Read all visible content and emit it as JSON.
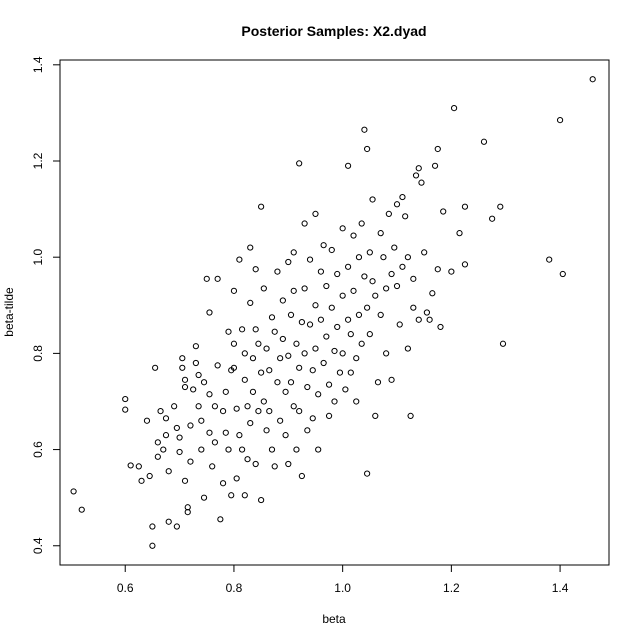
{
  "chart_data": {
    "type": "scatter",
    "title": "Posterior Samples: X2.dyad",
    "xlabel": "beta",
    "ylabel": "beta-tilde",
    "xlim": [
      0.48,
      1.49
    ],
    "ylim": [
      0.36,
      1.41
    ],
    "xticks": [
      0.6,
      0.8,
      1.0,
      1.2,
      1.4
    ],
    "xtick_labels": [
      "0.6",
      "0.8",
      "1.0",
      "1.2",
      "1.4"
    ],
    "yticks": [
      0.4,
      0.6,
      0.8,
      1.0,
      1.2,
      1.4
    ],
    "ytick_labels": [
      "0.4",
      "0.6",
      "0.8",
      "1.0",
      "1.2",
      "1.4"
    ],
    "grid": false,
    "points": [
      [
        0.505,
        0.513
      ],
      [
        0.52,
        0.475
      ],
      [
        0.6,
        0.705
      ],
      [
        0.6,
        0.683
      ],
      [
        0.61,
        0.567
      ],
      [
        0.625,
        0.565
      ],
      [
        0.63,
        0.535
      ],
      [
        0.64,
        0.66
      ],
      [
        0.645,
        0.545
      ],
      [
        0.65,
        0.4
      ],
      [
        0.65,
        0.44
      ],
      [
        0.655,
        0.77
      ],
      [
        0.66,
        0.615
      ],
      [
        0.66,
        0.585
      ],
      [
        0.665,
        0.68
      ],
      [
        0.67,
        0.6
      ],
      [
        0.675,
        0.665
      ],
      [
        0.675,
        0.63
      ],
      [
        0.68,
        0.555
      ],
      [
        0.68,
        0.45
      ],
      [
        0.69,
        0.69
      ],
      [
        0.695,
        0.645
      ],
      [
        0.695,
        0.44
      ],
      [
        0.7,
        0.625
      ],
      [
        0.7,
        0.595
      ],
      [
        0.705,
        0.79
      ],
      [
        0.705,
        0.77
      ],
      [
        0.71,
        0.745
      ],
      [
        0.71,
        0.73
      ],
      [
        0.71,
        0.535
      ],
      [
        0.715,
        0.48
      ],
      [
        0.715,
        0.47
      ],
      [
        0.72,
        0.65
      ],
      [
        0.72,
        0.575
      ],
      [
        0.725,
        0.725
      ],
      [
        0.73,
        0.815
      ],
      [
        0.73,
        0.78
      ],
      [
        0.735,
        0.755
      ],
      [
        0.735,
        0.69
      ],
      [
        0.74,
        0.66
      ],
      [
        0.74,
        0.6
      ],
      [
        0.745,
        0.74
      ],
      [
        0.745,
        0.5
      ],
      [
        0.75,
        0.955
      ],
      [
        0.755,
        0.885
      ],
      [
        0.755,
        0.715
      ],
      [
        0.755,
        0.635
      ],
      [
        0.76,
        0.565
      ],
      [
        0.765,
        0.615
      ],
      [
        0.765,
        0.69
      ],
      [
        0.77,
        0.955
      ],
      [
        0.77,
        0.775
      ],
      [
        0.775,
        0.455
      ],
      [
        0.78,
        0.68
      ],
      [
        0.78,
        0.53
      ],
      [
        0.785,
        0.72
      ],
      [
        0.785,
        0.635
      ],
      [
        0.79,
        0.845
      ],
      [
        0.79,
        0.6
      ],
      [
        0.795,
        0.765
      ],
      [
        0.795,
        0.505
      ],
      [
        0.8,
        0.93
      ],
      [
        0.8,
        0.82
      ],
      [
        0.8,
        0.77
      ],
      [
        0.805,
        0.685
      ],
      [
        0.805,
        0.54
      ],
      [
        0.81,
        0.995
      ],
      [
        0.81,
        0.63
      ],
      [
        0.815,
        0.85
      ],
      [
        0.815,
        0.6
      ],
      [
        0.82,
        0.8
      ],
      [
        0.82,
        0.745
      ],
      [
        0.82,
        0.505
      ],
      [
        0.825,
        0.69
      ],
      [
        0.825,
        0.58
      ],
      [
        0.83,
        1.02
      ],
      [
        0.83,
        0.655
      ],
      [
        0.83,
        0.905
      ],
      [
        0.835,
        0.79
      ],
      [
        0.835,
        0.72
      ],
      [
        0.84,
        0.975
      ],
      [
        0.84,
        0.85
      ],
      [
        0.84,
        0.57
      ],
      [
        0.845,
        0.82
      ],
      [
        0.845,
        0.68
      ],
      [
        0.85,
        1.105
      ],
      [
        0.85,
        0.76
      ],
      [
        0.85,
        0.495
      ],
      [
        0.855,
        0.935
      ],
      [
        0.855,
        0.7
      ],
      [
        0.86,
        0.81
      ],
      [
        0.86,
        0.64
      ],
      [
        0.865,
        0.765
      ],
      [
        0.865,
        0.68
      ],
      [
        0.87,
        0.875
      ],
      [
        0.87,
        0.6
      ],
      [
        0.875,
        0.845
      ],
      [
        0.875,
        0.565
      ],
      [
        0.88,
        0.97
      ],
      [
        0.88,
        0.74
      ],
      [
        0.885,
        0.79
      ],
      [
        0.885,
        0.66
      ],
      [
        0.89,
        0.91
      ],
      [
        0.89,
        0.83
      ],
      [
        0.895,
        0.72
      ],
      [
        0.895,
        0.63
      ],
      [
        0.9,
        0.99
      ],
      [
        0.9,
        0.795
      ],
      [
        0.9,
        0.57
      ],
      [
        0.905,
        0.88
      ],
      [
        0.905,
        0.74
      ],
      [
        0.91,
        1.01
      ],
      [
        0.91,
        0.93
      ],
      [
        0.91,
        0.69
      ],
      [
        0.915,
        0.82
      ],
      [
        0.915,
        0.6
      ],
      [
        0.92,
        1.195
      ],
      [
        0.92,
        0.77
      ],
      [
        0.92,
        0.68
      ],
      [
        0.925,
        0.865
      ],
      [
        0.925,
        0.545
      ],
      [
        0.93,
        1.07
      ],
      [
        0.93,
        0.935
      ],
      [
        0.93,
        0.8
      ],
      [
        0.935,
        0.73
      ],
      [
        0.935,
        0.64
      ],
      [
        0.94,
        0.995
      ],
      [
        0.94,
        0.86
      ],
      [
        0.945,
        0.765
      ],
      [
        0.945,
        0.665
      ],
      [
        0.95,
        1.09
      ],
      [
        0.95,
        0.9
      ],
      [
        0.95,
        0.81
      ],
      [
        0.955,
        0.715
      ],
      [
        0.955,
        0.6
      ],
      [
        0.96,
        0.97
      ],
      [
        0.96,
        0.87
      ],
      [
        0.965,
        1.025
      ],
      [
        0.965,
        0.78
      ],
      [
        0.97,
        0.94
      ],
      [
        0.97,
        0.835
      ],
      [
        0.975,
        0.735
      ],
      [
        0.975,
        0.67
      ],
      [
        0.98,
        1.015
      ],
      [
        0.98,
        0.895
      ],
      [
        0.985,
        0.805
      ],
      [
        0.985,
        0.7
      ],
      [
        0.99,
        0.965
      ],
      [
        0.99,
        0.855
      ],
      [
        0.995,
        0.76
      ],
      [
        1.0,
        1.06
      ],
      [
        1.0,
        0.92
      ],
      [
        1.0,
        0.8
      ],
      [
        1.005,
        0.725
      ],
      [
        1.01,
        1.19
      ],
      [
        1.01,
        0.98
      ],
      [
        1.01,
        0.87
      ],
      [
        1.015,
        0.84
      ],
      [
        1.015,
        0.76
      ],
      [
        1.02,
        1.045
      ],
      [
        1.02,
        0.93
      ],
      [
        1.025,
        0.79
      ],
      [
        1.025,
        0.7
      ],
      [
        1.03,
        1.0
      ],
      [
        1.03,
        0.88
      ],
      [
        1.035,
        1.07
      ],
      [
        1.035,
        0.82
      ],
      [
        1.04,
        1.265
      ],
      [
        1.04,
        0.96
      ],
      [
        1.045,
        1.225
      ],
      [
        1.045,
        0.895
      ],
      [
        1.045,
        0.55
      ],
      [
        1.05,
        1.01
      ],
      [
        1.05,
        0.84
      ],
      [
        1.055,
        1.12
      ],
      [
        1.055,
        0.95
      ],
      [
        1.06,
        0.92
      ],
      [
        1.06,
        0.67
      ],
      [
        1.065,
        0.74
      ],
      [
        1.07,
        1.05
      ],
      [
        1.07,
        0.88
      ],
      [
        1.075,
        1.0
      ],
      [
        1.08,
        0.935
      ],
      [
        1.08,
        0.8
      ],
      [
        1.085,
        1.09
      ],
      [
        1.09,
        0.965
      ],
      [
        1.09,
        0.745
      ],
      [
        1.095,
        1.02
      ],
      [
        1.1,
        1.11
      ],
      [
        1.1,
        0.94
      ],
      [
        1.105,
        0.86
      ],
      [
        1.11,
        1.125
      ],
      [
        1.11,
        0.98
      ],
      [
        1.115,
        1.085
      ],
      [
        1.12,
        1.0
      ],
      [
        1.12,
        0.81
      ],
      [
        1.125,
        0.67
      ],
      [
        1.13,
        0.955
      ],
      [
        1.13,
        0.895
      ],
      [
        1.135,
        1.17
      ],
      [
        1.14,
        1.185
      ],
      [
        1.14,
        0.87
      ],
      [
        1.145,
        1.155
      ],
      [
        1.15,
        1.01
      ],
      [
        1.155,
        0.885
      ],
      [
        1.16,
        0.87
      ],
      [
        1.165,
        0.925
      ],
      [
        1.17,
        1.19
      ],
      [
        1.175,
        1.225
      ],
      [
        1.175,
        0.975
      ],
      [
        1.18,
        0.855
      ],
      [
        1.185,
        1.095
      ],
      [
        1.2,
        0.97
      ],
      [
        1.205,
        1.31
      ],
      [
        1.215,
        1.05
      ],
      [
        1.225,
        1.105
      ],
      [
        1.225,
        0.985
      ],
      [
        1.26,
        1.24
      ],
      [
        1.275,
        1.08
      ],
      [
        1.29,
        1.105
      ],
      [
        1.295,
        0.82
      ],
      [
        1.38,
        0.995
      ],
      [
        1.4,
        1.285
      ],
      [
        1.405,
        0.965
      ],
      [
        1.46,
        1.37
      ]
    ]
  }
}
